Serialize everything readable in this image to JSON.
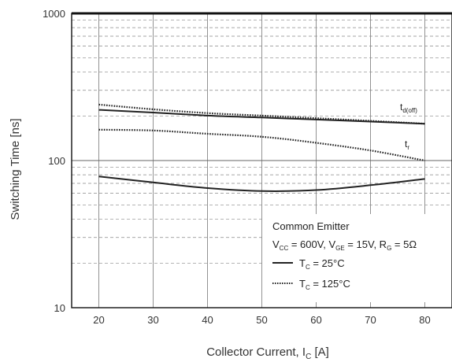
{
  "chart_data": {
    "type": "line",
    "title": "",
    "xlabel": "Collector Current, I",
    "xlabel_sub": "C",
    "xlabel_unit": " [A]",
    "ylabel": "Switching Time [ns]",
    "x_ticks": [
      20,
      30,
      40,
      50,
      60,
      70,
      80
    ],
    "y_ticks": [
      10,
      100,
      1000
    ],
    "xlim": [
      15,
      85
    ],
    "ylim": [
      10,
      1000
    ],
    "y_scale": "log",
    "grid": true,
    "x": [
      20,
      30,
      40,
      50,
      60,
      70,
      80
    ],
    "series": [
      {
        "name": "t_d(off)",
        "condition": "T_C = 25°C",
        "style": "solid",
        "values": [
          221,
          212,
          202,
          196,
          190,
          184,
          178
        ]
      },
      {
        "name": "t_d(off)",
        "condition": "T_C = 125°C",
        "style": "dotted",
        "values": [
          240,
          223,
          210,
          202,
          194,
          186,
          178
        ]
      },
      {
        "name": "t_r",
        "condition": "T_C = 25°C",
        "style": "solid",
        "values": [
          78,
          71,
          65,
          62,
          63,
          68,
          75
        ]
      },
      {
        "name": "t_r",
        "condition": "T_C = 125°C",
        "style": "dotted",
        "values": [
          162,
          160,
          152,
          145,
          132,
          117,
          100
        ]
      }
    ],
    "annotations": [
      {
        "main": "t",
        "sub": "d(off)"
      },
      {
        "main": "t",
        "sub": "r"
      }
    ],
    "legend": {
      "placement": "bottom-right",
      "heading": "Common Emitter",
      "conditions": {
        "vcc_main": "V",
        "vcc_sub": "CC",
        "vcc_val": " = 600V, ",
        "vge_main": "V",
        "vge_sub": "GE",
        "vge_val": " = 15V, ",
        "rg_main": "R",
        "rg_sub": "G",
        "rg_val": " = 5Ω"
      },
      "entries": [
        {
          "main": "T",
          "sub": "C",
          "val": " = 25°C",
          "style": "solid"
        },
        {
          "main": "T",
          "sub": "C",
          "val": " = 125°C",
          "style": "dotted"
        }
      ]
    }
  }
}
